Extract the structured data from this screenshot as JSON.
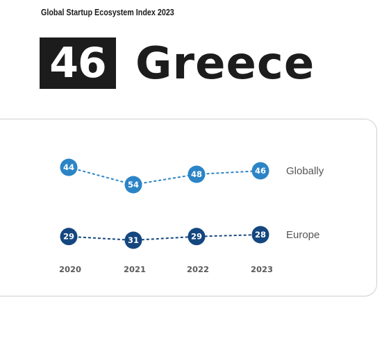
{
  "header": {
    "report_title": "Global Startup Ecosystem Index 2023",
    "rank": "46",
    "country": "Greece"
  },
  "colors": {
    "globally": "#2b84c6",
    "europe": "#14477f"
  },
  "chart_data": {
    "type": "line",
    "x": [
      "2020",
      "2021",
      "2022",
      "2023"
    ],
    "series": [
      {
        "name": "Globally",
        "values": [
          44,
          54,
          48,
          46
        ]
      },
      {
        "name": "Europe",
        "values": [
          29,
          31,
          29,
          28
        ]
      }
    ]
  }
}
